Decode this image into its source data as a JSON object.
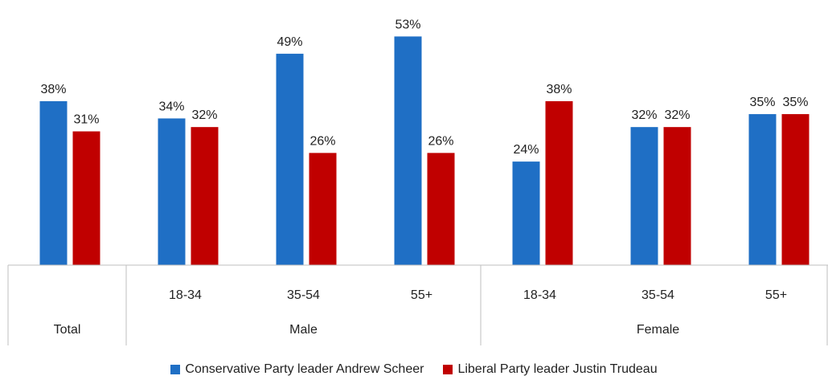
{
  "chart_data": {
    "type": "bar",
    "groups": [
      {
        "group": "Total",
        "categories": [
          ""
        ]
      },
      {
        "group": "Male",
        "categories": [
          "18-34",
          "35-54",
          "55+"
        ]
      },
      {
        "group": "Female",
        "categories": [
          "18-34",
          "35-54",
          "55+"
        ]
      }
    ],
    "series": [
      {
        "name": "Conservative Party leader Andrew Scheer",
        "color": "#1f6fc5",
        "values": [
          38,
          34,
          49,
          53,
          24,
          32,
          35
        ],
        "labels": [
          "38%",
          "34%",
          "49%",
          "53%",
          "24%",
          "32%",
          "35%"
        ]
      },
      {
        "name": "Liberal Party leader Justin Trudeau",
        "color": "#c00000",
        "values": [
          31,
          32,
          26,
          26,
          38,
          32,
          35
        ],
        "labels": [
          "31%",
          "32%",
          "26%",
          "26%",
          "38%",
          "32%",
          "35%"
        ]
      }
    ],
    "ylim": [
      0,
      60
    ],
    "grid": false,
    "legend_position": "bottom"
  }
}
